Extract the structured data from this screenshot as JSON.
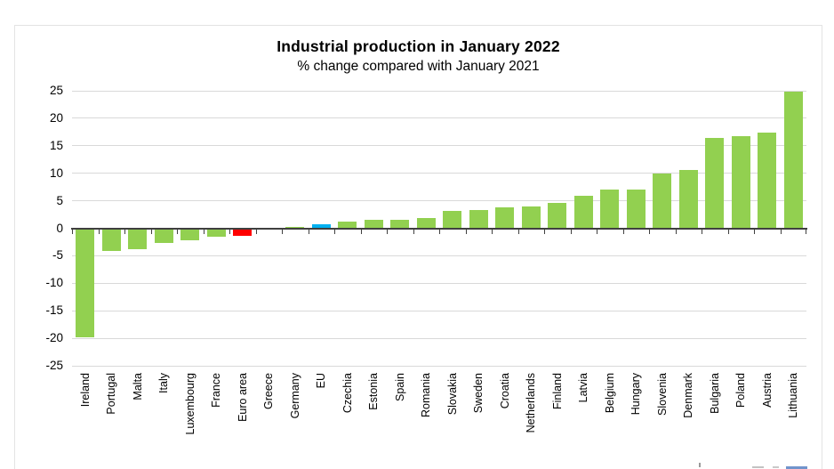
{
  "chart_data": {
    "type": "bar",
    "title": "Industrial production in January 2022",
    "subtitle": "% change compared with January 2021",
    "categories": [
      "Ireland",
      "Portugal",
      "Malta",
      "Italy",
      "Luxembourg",
      "France",
      "Euro area",
      "Greece",
      "Germany",
      "EU",
      "Czechia",
      "Estonia",
      "Spain",
      "Romania",
      "Slovakia",
      "Sweden",
      "Croatia",
      "Netherlands",
      "Finland",
      "Latvia",
      "Belgium",
      "Hungary",
      "Slovenia",
      "Denmark",
      "Bulgaria",
      "Poland",
      "Austria",
      "Lithuania"
    ],
    "values": [
      -19.9,
      -4.2,
      -3.8,
      -2.7,
      -2.2,
      -1.5,
      -1.3,
      -0.1,
      0.3,
      0.7,
      1.2,
      1.5,
      1.5,
      1.8,
      3.2,
      3.3,
      3.8,
      4.0,
      4.6,
      5.9,
      7.0,
      7.1,
      9.9,
      10.6,
      16.5,
      16.7,
      17.4,
      24.8
    ],
    "ylim": [
      -25,
      25
    ],
    "ytick_step": 5,
    "yticks": [
      25,
      20,
      15,
      10,
      5,
      0,
      -5,
      -10,
      -15,
      -20,
      -25
    ],
    "xlabel": "",
    "ylabel": "",
    "grid": true,
    "legend_position": "none",
    "colors": {
      "bar_default": "#92D050",
      "axis": "#3f3f3f",
      "gridline": "#d9d9d9",
      "highlight_euro_area": "#FF0000",
      "highlight_eu": "#00B0F0"
    },
    "highlighted_bars": {
      "Euro area": "#FF0000",
      "EU": "#00B0F0"
    }
  }
}
